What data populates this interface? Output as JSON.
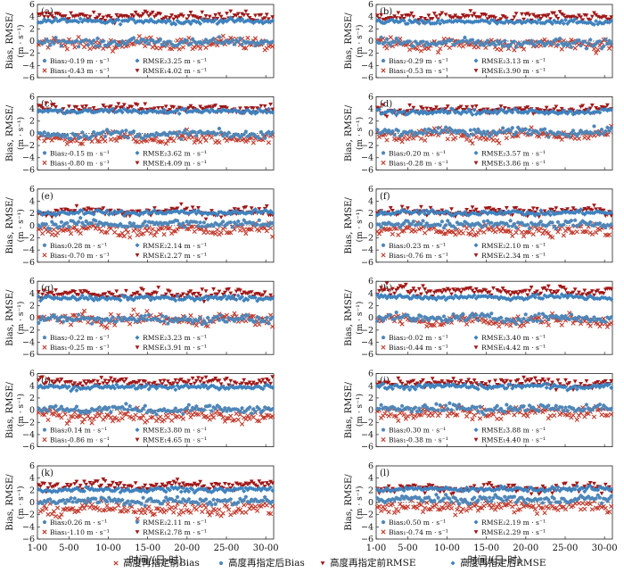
{
  "chart_data": {
    "type": "scatter",
    "y_axis_label": "Bias, RMSE/",
    "y_axis_unit": "(m · s⁻¹)",
    "x_axis_label": "时间/(日-时)",
    "x_ticks": [
      "1-00",
      "5-00",
      "10-00",
      "15-00",
      "20-00",
      "25-00",
      "30-00"
    ],
    "xlim": [
      1,
      31
    ],
    "ylim": [
      -6,
      6
    ],
    "y_ticks": [
      -6,
      -4,
      -2,
      0,
      2,
      4,
      6
    ],
    "zero_line": "dotted",
    "legend": [
      {
        "key": "bias_before",
        "label": "高度再指定前Bias",
        "color": "#c0392b",
        "marker": "x"
      },
      {
        "key": "bias_after",
        "label": "高度再指定后Bias",
        "color": "#4f86b8",
        "marker": "pentagon"
      },
      {
        "key": "rmse_before",
        "label": "高度再指定前RMSE",
        "color": "#a01818",
        "marker": "triangle-down"
      },
      {
        "key": "rmse_after",
        "label": "高度再指定后RMSE",
        "color": "#3f82be",
        "marker": "diamond"
      }
    ],
    "legend_position": "bottom",
    "panels": [
      {
        "label": "(a)",
        "bias_after": "Bias₂-0.19 m · s⁻¹",
        "bias_before": "Bias₁-0.43 m · s⁻¹",
        "rmse_after": "RMSE₂3.25 m · s⁻¹",
        "rmse_before": "RMSE₁4.02 m · s⁻¹",
        "mean_bias_after": -0.19,
        "mean_bias_before": -0.43,
        "mean_rmse_after": 3.25,
        "mean_rmse_before": 4.02
      },
      {
        "label": "(b)",
        "bias_after": "Bias₂-0.29 m · s⁻¹",
        "bias_before": "Bias₁-0.53 m · s⁻¹",
        "rmse_after": "RMSE₂3.13 m · s⁻¹",
        "rmse_before": "RMSE₁3.90 m · s⁻¹",
        "mean_bias_after": -0.29,
        "mean_bias_before": -0.53,
        "mean_rmse_after": 3.13,
        "mean_rmse_before": 3.9
      },
      {
        "label": "(c)",
        "bias_after": "Bias₂-0.15 m · s⁻¹",
        "bias_before": "Bias₁-0.80 m · s⁻¹",
        "rmse_after": "RMSE₂3.62 m · s⁻¹",
        "rmse_before": "RMSE₁4.09 m · s⁻¹",
        "mean_bias_after": -0.15,
        "mean_bias_before": -0.8,
        "mean_rmse_after": 3.62,
        "mean_rmse_before": 4.09
      },
      {
        "label": "(d)",
        "bias_after": "Bias₂0.20 m · s⁻¹",
        "bias_before": "Bias₁-0.28 m · s⁻¹",
        "rmse_after": "RMSE₂3.57 m · s⁻¹",
        "rmse_before": "RMSE₁3.86 m · s⁻¹",
        "mean_bias_after": 0.2,
        "mean_bias_before": -0.28,
        "mean_rmse_after": 3.57,
        "mean_rmse_before": 3.86
      },
      {
        "label": "(e)",
        "bias_after": "Bias₂0.28 m · s⁻¹",
        "bias_before": "Bias₁-0.70 m · s⁻¹",
        "rmse_after": "RMSE₂2.14 m · s⁻¹",
        "rmse_before": "RMSE₁2.27 m · s⁻¹",
        "mean_bias_after": 0.28,
        "mean_bias_before": -0.7,
        "mean_rmse_after": 2.14,
        "mean_rmse_before": 2.27
      },
      {
        "label": "(f)",
        "bias_after": "Bias₂0.23 m · s⁻¹",
        "bias_before": "Bias₁-0.76 m · s⁻¹",
        "rmse_after": "RMSE₂2.10 m · s⁻¹",
        "rmse_before": "RMSE₁2.34 m · s⁻¹",
        "mean_bias_after": 0.23,
        "mean_bias_before": -0.76,
        "mean_rmse_after": 2.1,
        "mean_rmse_before": 2.34
      },
      {
        "label": "(g)",
        "bias_after": "Bias₂-0.22 m · s⁻¹",
        "bias_before": "Bias₁-0.25 m · s⁻¹",
        "rmse_after": "RMSE₂3.23 m · s⁻¹",
        "rmse_before": "RMSE₁3.91 m · s⁻¹",
        "mean_bias_after": -0.22,
        "mean_bias_before": -0.25,
        "mean_rmse_after": 3.23,
        "mean_rmse_before": 3.91
      },
      {
        "label": "(h)",
        "bias_after": "Bias₂-0.02 m · s⁻¹",
        "bias_before": "Bias₁-0.44 m · s⁻¹",
        "rmse_after": "RMSE₂3.40 m · s⁻¹",
        "rmse_before": "RMSE₁4.42 m · s⁻¹",
        "mean_bias_after": -0.02,
        "mean_bias_before": -0.44,
        "mean_rmse_after": 3.4,
        "mean_rmse_before": 4.42
      },
      {
        "label": "(i)",
        "bias_after": "Bias₂0.14 m · s⁻¹",
        "bias_before": "Bias₁-0.86 m · s⁻¹",
        "rmse_after": "RMSE₂3.80 m · s⁻¹",
        "rmse_before": "RMSE₁4.65 m · s⁻¹",
        "mean_bias_after": 0.14,
        "mean_bias_before": -0.86,
        "mean_rmse_after": 3.8,
        "mean_rmse_before": 4.65
      },
      {
        "label": "(j)",
        "bias_after": "Bias₂0.30 m · s⁻¹",
        "bias_before": "Bias₁-0.38 m · s⁻¹",
        "rmse_after": "RMSE₂3.88 m · s⁻¹",
        "rmse_before": "RMSE₁4.40 m · s⁻¹",
        "mean_bias_after": 0.3,
        "mean_bias_before": -0.38,
        "mean_rmse_after": 3.88,
        "mean_rmse_before": 4.4
      },
      {
        "label": "(k)",
        "bias_after": "Bias₂0.26 m · s⁻¹",
        "bias_before": "Bias₁-1.10 m · s⁻¹",
        "rmse_after": "RMSE₂2.11 m · s⁻¹",
        "rmse_before": "RMSE₁2.78 m · s⁻¹",
        "mean_bias_after": 0.26,
        "mean_bias_before": -1.1,
        "mean_rmse_after": 2.11,
        "mean_rmse_before": 2.78
      },
      {
        "label": "(l)",
        "bias_after": "Bias₂0.50 m · s⁻¹",
        "bias_before": "Bias₁-0.74 m · s⁻¹",
        "rmse_after": "RMSE₂2.19 m · s⁻¹",
        "rmse_before": "RMSE₁2.29 m · s⁻¹",
        "mean_bias_after": 0.5,
        "mean_bias_before": -0.74,
        "mean_rmse_after": 2.19,
        "mean_rmse_before": 2.29
      }
    ]
  }
}
